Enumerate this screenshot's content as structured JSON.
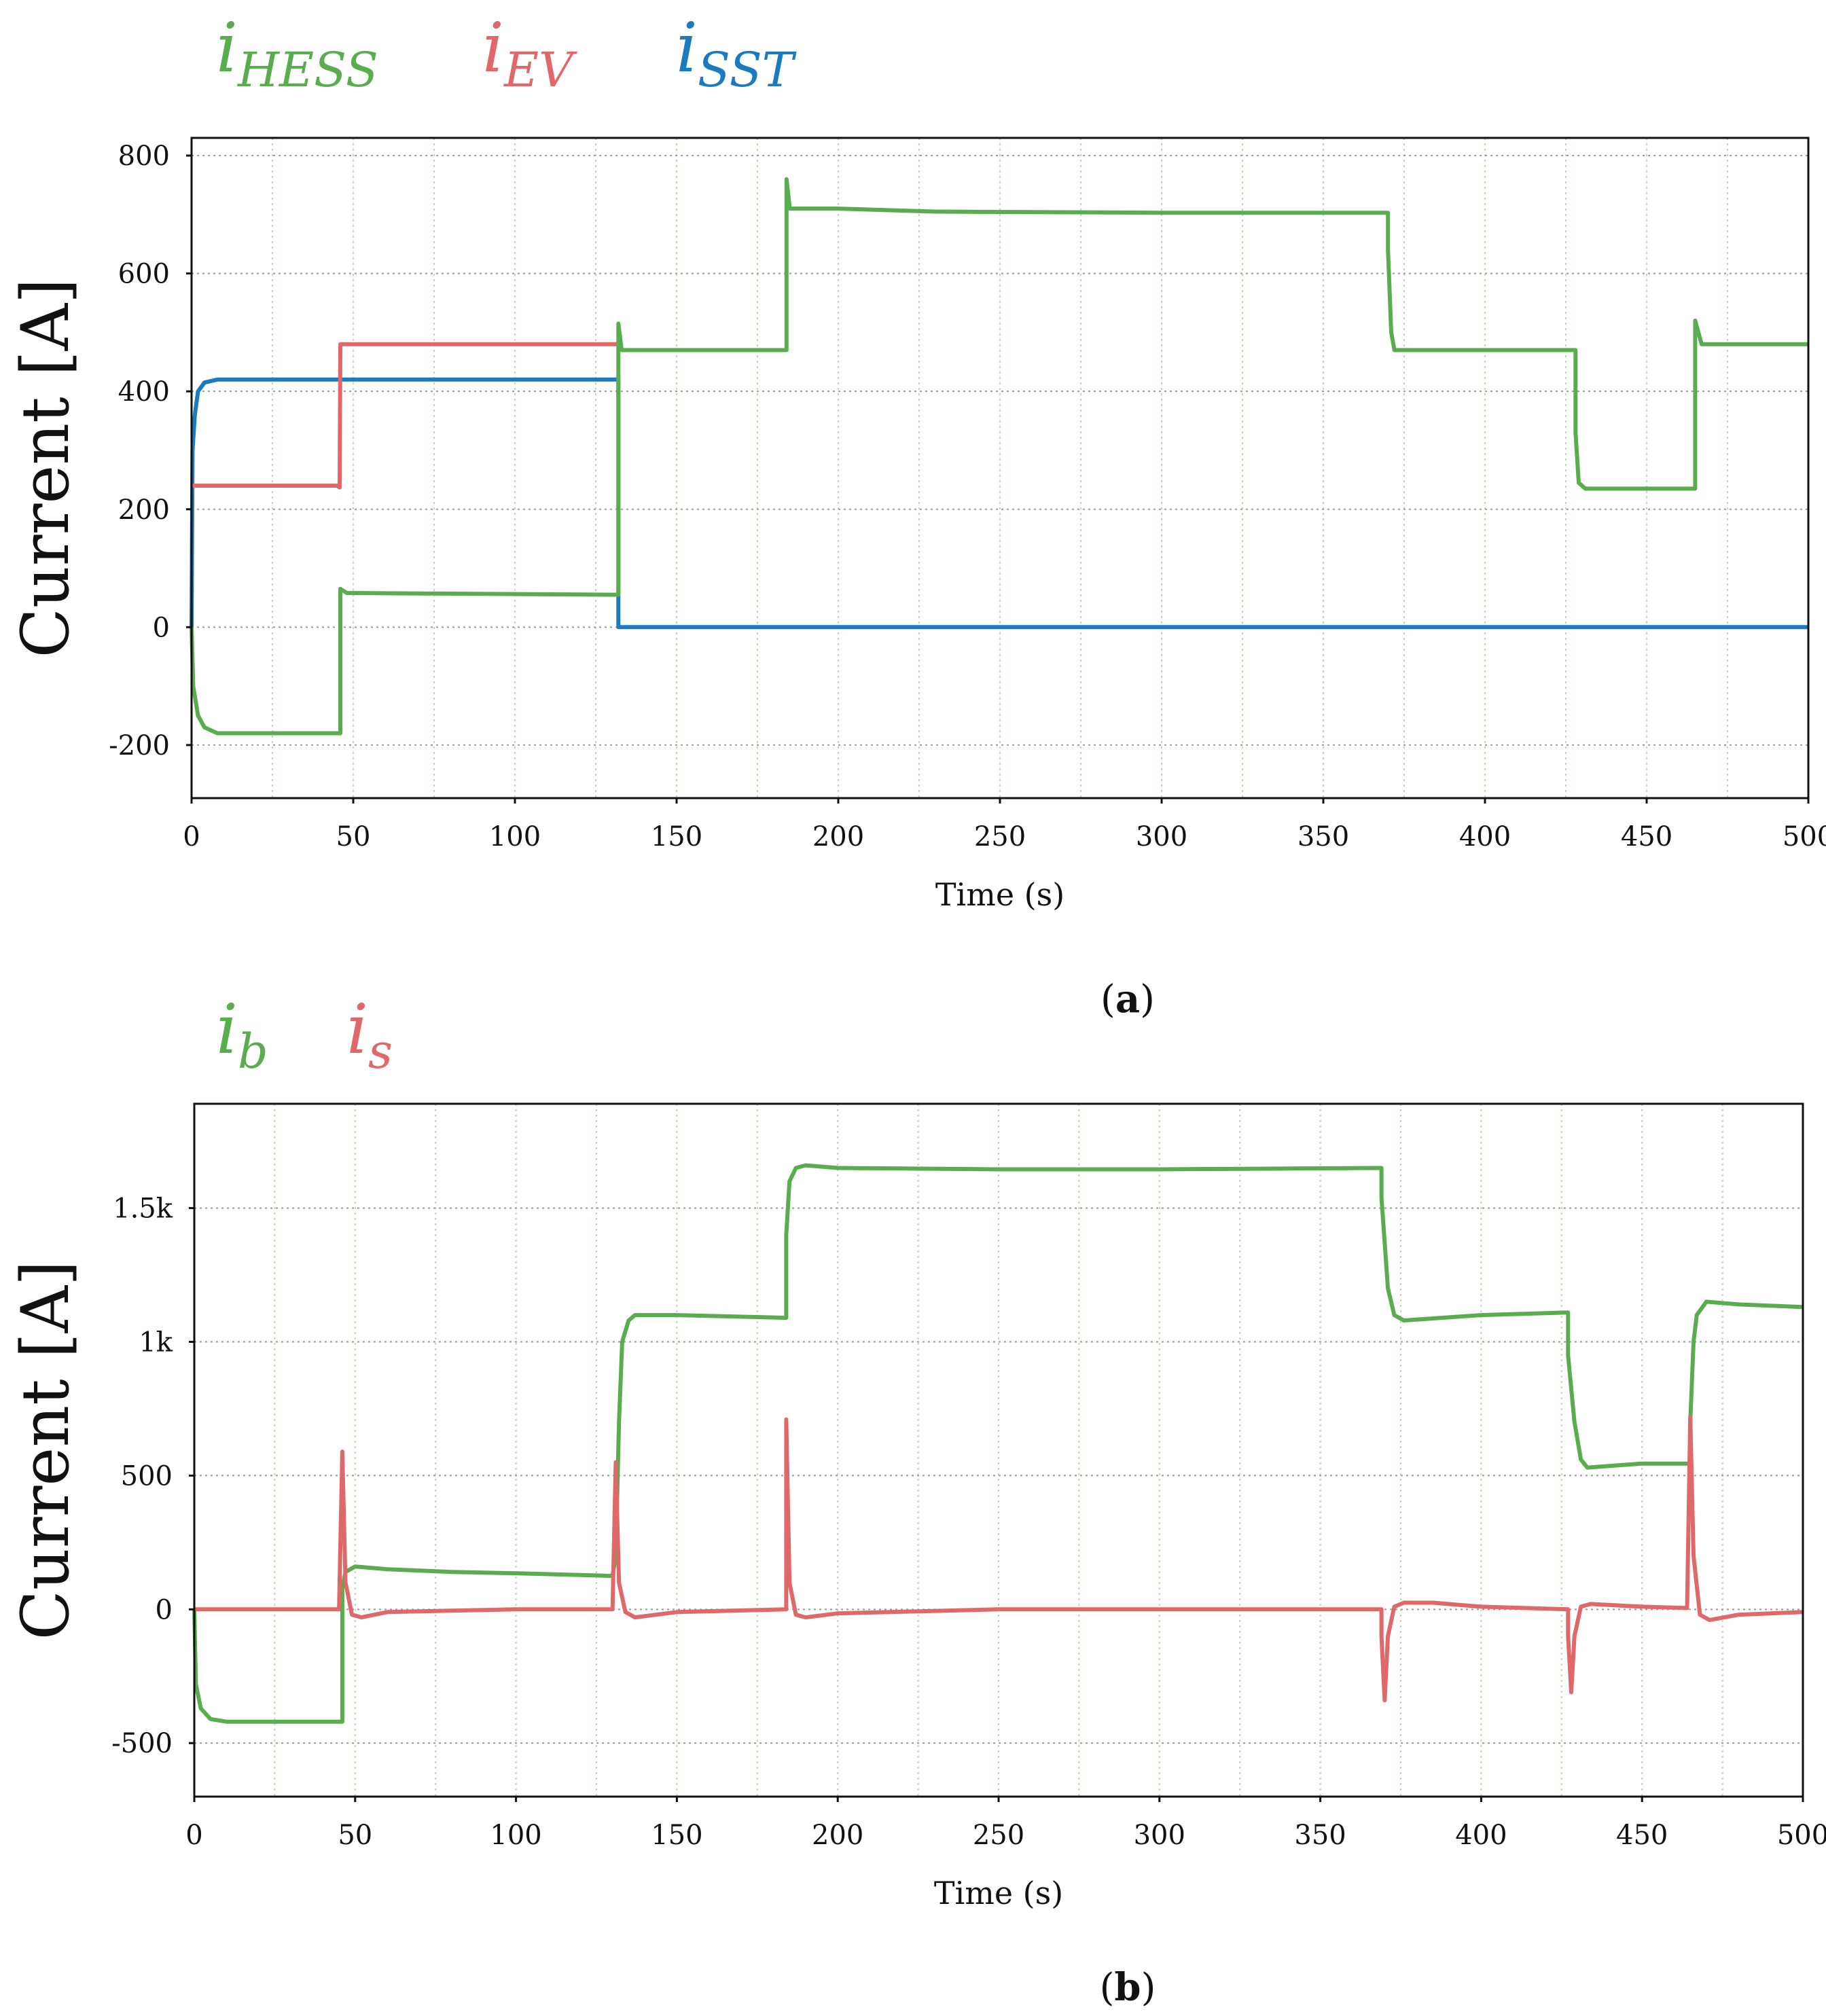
{
  "colors": {
    "green": "#5aad4e",
    "red": "#e06868",
    "blue": "#1a7bc0",
    "grid": "#b9ddb0",
    "axis": "#111111"
  },
  "chart_data": [
    {
      "id": "a",
      "type": "line",
      "caption": "(a)",
      "caption_open": "(",
      "caption_letter": "a",
      "caption_close": ")",
      "xlabel": "Time (s)",
      "ylabel": "Current [A]",
      "xlim": [
        0,
        500
      ],
      "ylim": [
        -290,
        830
      ],
      "x_ticks": [
        0,
        50,
        100,
        150,
        200,
        250,
        300,
        350,
        400,
        450,
        500
      ],
      "x_tick_labels": [
        "0",
        "50",
        "100",
        "150",
        "200",
        "250",
        "300",
        "350",
        "400",
        "450",
        "500"
      ],
      "y_ticks": [
        -200,
        0,
        200,
        400,
        600,
        800
      ],
      "y_tick_labels": [
        "-200",
        "0",
        "200",
        "400",
        "600",
        "800"
      ],
      "x_grid": [
        0,
        25,
        50,
        75,
        100,
        125,
        150,
        175,
        200,
        225,
        250,
        275,
        300,
        325,
        350,
        375,
        400,
        425,
        450,
        475,
        500
      ],
      "legend": [
        {
          "base": "i",
          "sub": "HESS",
          "color": "green"
        },
        {
          "base": "i",
          "sub": "EV",
          "color": "red"
        },
        {
          "base": "i",
          "sub": "SST",
          "color": "blue"
        }
      ],
      "series": [
        {
          "name": "i_SST",
          "color": "blue",
          "points": [
            [
              0,
              0
            ],
            [
              0.3,
              300
            ],
            [
              1,
              360
            ],
            [
              2,
              400
            ],
            [
              4,
              415
            ],
            [
              8,
              420
            ],
            [
              45,
              420
            ],
            [
              132,
              420
            ],
            [
              132,
              0
            ],
            [
              500,
              0
            ]
          ]
        },
        {
          "name": "i_EV",
          "color": "red",
          "points": [
            [
              0,
              240
            ],
            [
              45,
              240
            ],
            [
              45.8,
              237
            ],
            [
              46,
              480
            ],
            [
              132,
              480
            ]
          ]
        },
        {
          "name": "i_HESS",
          "color": "green",
          "points": [
            [
              0,
              0
            ],
            [
              0.5,
              -100
            ],
            [
              2,
              -150
            ],
            [
              4,
              -170
            ],
            [
              8,
              -180
            ],
            [
              46,
              -180
            ],
            [
              46,
              65
            ],
            [
              48,
              58
            ],
            [
              132,
              55
            ],
            [
              132,
              515
            ],
            [
              133,
              470
            ],
            [
              184,
              470
            ],
            [
              184,
              760
            ],
            [
              185,
              710
            ],
            [
              200,
              710
            ],
            [
              230,
              705
            ],
            [
              300,
              703
            ],
            [
              370,
              703
            ],
            [
              370,
              640
            ],
            [
              371,
              500
            ],
            [
              372,
              470
            ],
            [
              428,
              470
            ],
            [
              428,
              330
            ],
            [
              429,
              245
            ],
            [
              431,
              235
            ],
            [
              465,
              235
            ],
            [
              465,
              520
            ],
            [
              467,
              480
            ],
            [
              500,
              480
            ]
          ]
        }
      ]
    },
    {
      "id": "b",
      "type": "line",
      "caption": "(b)",
      "caption_open": "(",
      "caption_letter": "b",
      "caption_close": ")",
      "xlabel": "Time (s)",
      "ylabel": "Current [A]",
      "xlim": [
        0,
        500
      ],
      "ylim": [
        -700,
        1890
      ],
      "x_ticks": [
        0,
        50,
        100,
        150,
        200,
        250,
        300,
        350,
        400,
        450,
        500
      ],
      "x_tick_labels": [
        "0",
        "50",
        "100",
        "150",
        "200",
        "250",
        "300",
        "350",
        "400",
        "450",
        "500"
      ],
      "y_ticks": [
        -500,
        0,
        500,
        1000,
        1500
      ],
      "y_tick_labels": [
        "-500",
        "0",
        "500",
        "1k",
        "1.5k"
      ],
      "x_grid": [
        0,
        25,
        50,
        75,
        100,
        125,
        150,
        175,
        200,
        225,
        250,
        275,
        300,
        325,
        350,
        375,
        400,
        425,
        450,
        475,
        500
      ],
      "legend": [
        {
          "base": "i",
          "sub": "b",
          "color": "green"
        },
        {
          "base": "i",
          "sub": "s",
          "color": "red"
        }
      ],
      "series": [
        {
          "name": "i_b",
          "color": "green",
          "points": [
            [
              0,
              0
            ],
            [
              0.5,
              -280
            ],
            [
              2,
              -370
            ],
            [
              5,
              -410
            ],
            [
              10,
              -420
            ],
            [
              46,
              -420
            ],
            [
              46,
              80
            ],
            [
              47,
              140
            ],
            [
              50,
              160
            ],
            [
              60,
              150
            ],
            [
              80,
              140
            ],
            [
              100,
              135
            ],
            [
              130,
              125
            ],
            [
              131,
              200
            ],
            [
              132,
              700
            ],
            [
              133,
              1000
            ],
            [
              135,
              1080
            ],
            [
              137,
              1100
            ],
            [
              150,
              1100
            ],
            [
              184,
              1090
            ],
            [
              184,
              1400
            ],
            [
              185,
              1600
            ],
            [
              187,
              1650
            ],
            [
              190,
              1660
            ],
            [
              200,
              1650
            ],
            [
              250,
              1645
            ],
            [
              300,
              1645
            ],
            [
              369,
              1650
            ],
            [
              369,
              1540
            ],
            [
              371,
              1200
            ],
            [
              373,
              1100
            ],
            [
              376,
              1080
            ],
            [
              400,
              1100
            ],
            [
              427,
              1110
            ],
            [
              427,
              950
            ],
            [
              429,
              700
            ],
            [
              431,
              560
            ],
            [
              433,
              530
            ],
            [
              450,
              545
            ],
            [
              465,
              545
            ],
            [
              465,
              700
            ],
            [
              466,
              1000
            ],
            [
              467,
              1100
            ],
            [
              470,
              1150
            ],
            [
              480,
              1140
            ],
            [
              500,
              1130
            ]
          ]
        },
        {
          "name": "i_s",
          "color": "red",
          "points": [
            [
              0,
              0
            ],
            [
              45,
              0
            ],
            [
              46,
              590
            ],
            [
              47,
              100
            ],
            [
              49,
              -20
            ],
            [
              52,
              -30
            ],
            [
              60,
              -10
            ],
            [
              100,
              0
            ],
            [
              130,
              0
            ],
            [
              131,
              550
            ],
            [
              132,
              100
            ],
            [
              134,
              -10
            ],
            [
              137,
              -30
            ],
            [
              150,
              -10
            ],
            [
              184,
              0
            ],
            [
              184,
              710
            ],
            [
              185,
              100
            ],
            [
              187,
              -20
            ],
            [
              190,
              -30
            ],
            [
              200,
              -15
            ],
            [
              250,
              0
            ],
            [
              300,
              0
            ],
            [
              369,
              0
            ],
            [
              369,
              -100
            ],
            [
              370,
              -340
            ],
            [
              371,
              -100
            ],
            [
              373,
              10
            ],
            [
              376,
              25
            ],
            [
              385,
              25
            ],
            [
              400,
              10
            ],
            [
              427,
              0
            ],
            [
              427,
              -100
            ],
            [
              428,
              -310
            ],
            [
              429,
              -100
            ],
            [
              431,
              10
            ],
            [
              434,
              20
            ],
            [
              450,
              10
            ],
            [
              464,
              5
            ],
            [
              465,
              720
            ],
            [
              466,
              200
            ],
            [
              468,
              -20
            ],
            [
              471,
              -40
            ],
            [
              480,
              -20
            ],
            [
              500,
              -10
            ]
          ]
        }
      ]
    }
  ]
}
